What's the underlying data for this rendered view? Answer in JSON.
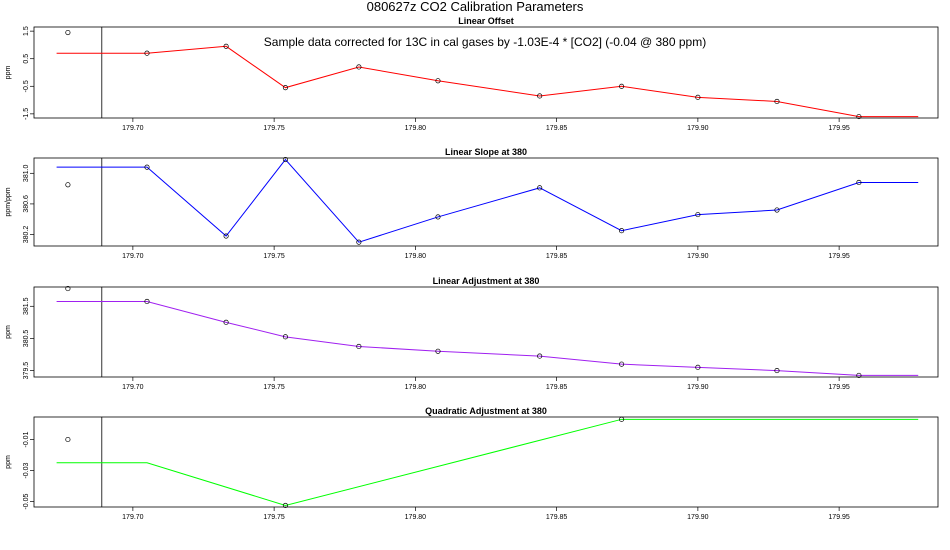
{
  "title": "080627z   CO2 Calibration Parameters",
  "annotation": "Sample data corrected for 13C in cal gases by -1.03E-4 * [CO2] (-0.04 @ 380 ppm)",
  "chart_data": [
    {
      "type": "line",
      "title": "Linear Offset",
      "ylabel": "ppm",
      "color": "#ff0000",
      "xlim": [
        179.665,
        179.985
      ],
      "ylim": [
        -1.65,
        1.65
      ],
      "xticks": [
        179.7,
        179.75,
        179.8,
        179.85,
        179.9,
        179.95
      ],
      "xtick_labels": [
        "179.70",
        "179.75",
        "179.80",
        "179.85",
        "179.90",
        "179.95"
      ],
      "yticks": [
        1.5,
        0.5,
        -0.5,
        -1.5
      ],
      "ytick_labels": [
        "1.5",
        "0.5",
        "-0.5",
        "-1.5"
      ],
      "vline": 179.689,
      "outlier": {
        "x": 179.677,
        "y": 1.45
      },
      "x": [
        179.705,
        179.733,
        179.754,
        179.78,
        179.808,
        179.844,
        179.873,
        179.9,
        179.928,
        179.957
      ],
      "y": [
        0.7,
        0.95,
        -0.55,
        0.2,
        -0.3,
        -0.85,
        -0.5,
        -0.9,
        -1.05,
        -1.6
      ],
      "line_start_x": 179.673,
      "line_end_x": 179.978
    },
    {
      "type": "line",
      "title": "Linear Slope at 380",
      "ylabel": "ppm/ppm",
      "color": "#0000ff",
      "xlim": [
        179.665,
        179.985
      ],
      "ylim": [
        380.05,
        381.2
      ],
      "xticks": [
        179.7,
        179.75,
        179.8,
        179.85,
        179.9,
        179.95
      ],
      "xtick_labels": [
        "179.70",
        "179.75",
        "179.80",
        "179.85",
        "179.90",
        "179.95"
      ],
      "yticks": [
        381.0,
        380.6,
        380.2
      ],
      "ytick_labels": [
        "381.0",
        "380.6",
        "380.2"
      ],
      "vline": 179.689,
      "outlier": {
        "x": 179.677,
        "y": 380.85
      },
      "x": [
        179.705,
        179.733,
        179.754,
        179.78,
        179.808,
        179.844,
        179.873,
        179.9,
        179.928,
        179.957
      ],
      "y": [
        381.08,
        380.18,
        381.18,
        380.1,
        380.43,
        380.81,
        380.25,
        380.46,
        380.52,
        380.88
      ],
      "line_start_x": 179.673,
      "line_end_x": 179.978
    },
    {
      "type": "line",
      "title": "Linear Adjustment at 380",
      "ylabel": "ppm",
      "color": "#a020f0",
      "xlim": [
        179.665,
        179.985
      ],
      "ylim": [
        379.3,
        382.1
      ],
      "xticks": [
        179.7,
        179.75,
        179.8,
        179.85,
        179.9,
        179.95
      ],
      "xtick_labels": [
        "179.70",
        "179.75",
        "179.80",
        "179.85",
        "179.90",
        "179.95"
      ],
      "yticks": [
        381.5,
        380.5,
        379.5
      ],
      "ytick_labels": [
        "381.5",
        "380.5",
        "379.5"
      ],
      "vline": 179.689,
      "outlier": {
        "x": 179.677,
        "y": 382.05
      },
      "x": [
        179.705,
        179.733,
        179.754,
        179.78,
        179.808,
        179.844,
        179.873,
        179.9,
        179.928,
        179.957
      ],
      "y": [
        381.65,
        381.0,
        380.55,
        380.25,
        380.1,
        379.95,
        379.7,
        379.6,
        379.5,
        379.35
      ],
      "line_start_x": 179.673,
      "line_end_x": 179.978
    },
    {
      "type": "line",
      "title": "Quadratic Adjustment at 380",
      "ylabel": "ppm",
      "color": "#00ff00",
      "xlim": [
        179.665,
        179.985
      ],
      "ylim": [
        -0.0535,
        0.0045
      ],
      "xticks": [
        179.7,
        179.75,
        179.8,
        179.85,
        179.9,
        179.95
      ],
      "xtick_labels": [
        "179.70",
        "179.75",
        "179.80",
        "179.85",
        "179.90",
        "179.95"
      ],
      "yticks": [
        -0.01,
        -0.03,
        -0.05
      ],
      "ytick_labels": [
        "-0.01",
        "-0.03",
        "-0.05"
      ],
      "vline": 179.689,
      "outlier": {
        "x": 179.677,
        "y": -0.01
      },
      "x": [
        179.705,
        179.754,
        179.873
      ],
      "y": [
        -0.025,
        -0.0525,
        0.003
      ],
      "markers": [
        false,
        true,
        true
      ],
      "line_start_x": 179.673,
      "line_end_x": 179.978
    }
  ]
}
